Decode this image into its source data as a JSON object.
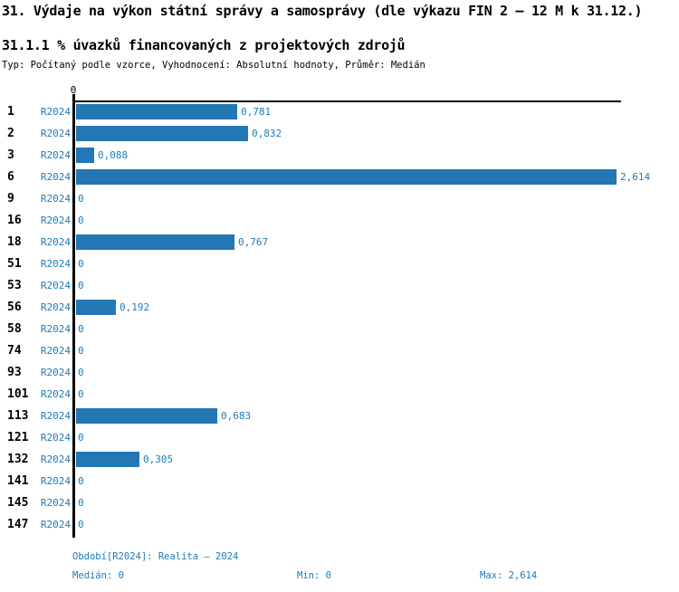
{
  "header": {
    "title": "31. Výdaje na výkon státní správy a samosprávy (dle výkazu FIN 2 – 12 M k 31.12.)",
    "subtitle": "31.1.1 % úvazků financovaných z projektových zdrojů",
    "meta": "Typ: Počítaný podle vzorce, Vyhodnocení: Absolutní hodnoty, Průměr: Medián"
  },
  "chart_data": {
    "type": "bar",
    "orientation": "horizontal",
    "title": "31.1.1 % úvazků financovaných z projektových zdrojů",
    "series_name": "R2024",
    "categories": [
      "1",
      "2",
      "3",
      "6",
      "9",
      "16",
      "18",
      "51",
      "53",
      "56",
      "58",
      "74",
      "93",
      "101",
      "113",
      "121",
      "132",
      "141",
      "145",
      "147"
    ],
    "values": [
      0.781,
      0.832,
      0.088,
      2.614,
      0,
      0,
      0.767,
      0,
      0,
      0.192,
      0,
      0,
      0,
      0,
      0.683,
      0,
      0.305,
      0,
      0,
      0
    ],
    "value_labels": [
      "0,781",
      "0,832",
      "0,088",
      "2,614",
      "0",
      "0",
      "0,767",
      "0",
      "0",
      "0,192",
      "0",
      "0",
      "0",
      "0",
      "0,683",
      "0",
      "0,305",
      "0",
      "0",
      "0"
    ],
    "xlim": [
      0,
      2.614
    ],
    "axis_zero_label": "0",
    "grid": false,
    "legend_position": "none"
  },
  "footer": {
    "period_label": "Období[R2024]: Realita – 2024",
    "median_label": "Medián: 0",
    "min_label": "Min: 0",
    "max_label": "Max: 2,614"
  },
  "colors": {
    "bar": "#2377b4",
    "accent_text": "#1f7ab8",
    "axis": "#000000"
  }
}
